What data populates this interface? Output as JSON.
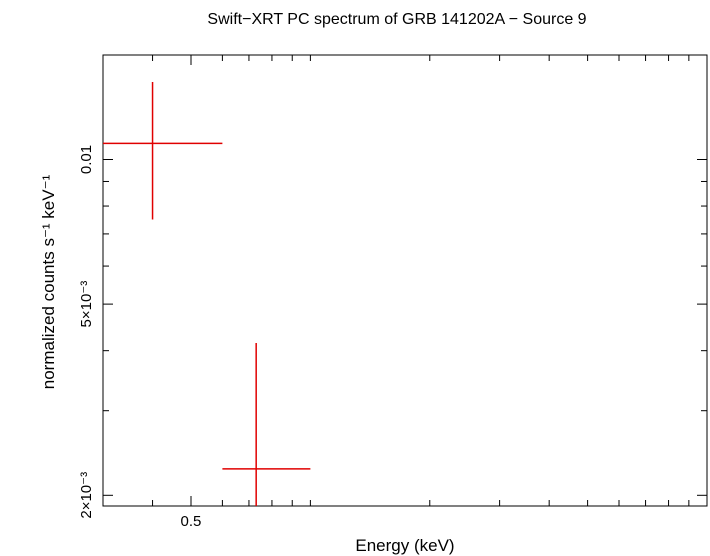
{
  "chart_data": {
    "type": "scatter",
    "title": "Swift−XRT PC spectrum of GRB 141202A − Source 9",
    "xlabel": "Energy (keV)",
    "ylabel": "normalized counts s⁻¹ keV⁻¹",
    "x_scale": "log",
    "y_scale": "log",
    "xlim": [
      0.3,
      10
    ],
    "ylim": [
      0.0019,
      0.0165
    ],
    "x_tick_labels": [
      {
        "value": 0.5,
        "label": "0.5"
      }
    ],
    "y_tick_labels": [
      {
        "value": 0.002,
        "label": "2×10⁻³"
      },
      {
        "value": 0.005,
        "label": "5×10⁻³"
      },
      {
        "value": 0.01,
        "label": "0.01"
      }
    ],
    "grid": false,
    "series": [
      {
        "color": "#e00000",
        "points": [
          {
            "x": 0.4,
            "x_low": 0.3,
            "x_high": 0.6,
            "y": 0.0108,
            "y_low": 0.0075,
            "y_high": 0.0145
          },
          {
            "x": 0.73,
            "x_low": 0.6,
            "x_high": 1.0,
            "y": 0.00227,
            "y_low": 0.0019,
            "y_high": 0.00415
          }
        ]
      }
    ]
  }
}
